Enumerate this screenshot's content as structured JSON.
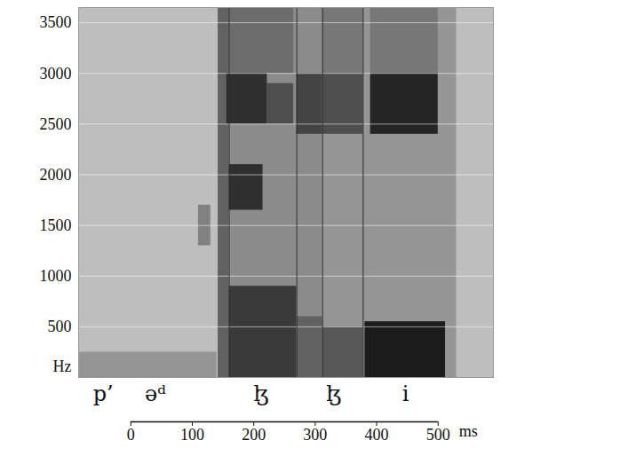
{
  "chart_data": {
    "type": "spectrogram",
    "x_label": "ms",
    "y_label": "Hz",
    "xlim": [
      -85,
      590
    ],
    "xticks": [
      0,
      100,
      200,
      300,
      400,
      500
    ],
    "ylim": [
      0,
      3650
    ],
    "yticks": [
      500,
      1000,
      1500,
      2000,
      2500,
      3000,
      3500
    ],
    "grid": true,
    "level_range": [
      0,
      1
    ],
    "cells": [
      {
        "t0": -85,
        "t1": 590,
        "f0": 0,
        "f1": 3650,
        "level": 0.15
      },
      {
        "t0": -85,
        "t1": 140,
        "f0": 0,
        "f1": 250,
        "level": 0.35
      },
      {
        "t0": 110,
        "t1": 130,
        "f0": 1300,
        "f1": 1700,
        "level": 0.45
      },
      {
        "t0": 142,
        "t1": 160,
        "f0": 0,
        "f1": 3650,
        "level": 0.6
      },
      {
        "t0": 160,
        "t1": 270,
        "f0": 0,
        "f1": 3650,
        "level": 0.4
      },
      {
        "t0": 160,
        "t1": 270,
        "f0": 0,
        "f1": 900,
        "level": 0.8
      },
      {
        "t0": 160,
        "t1": 215,
        "f0": 1650,
        "f1": 2100,
        "level": 0.85
      },
      {
        "t0": 156,
        "t1": 222,
        "f0": 2500,
        "f1": 3000,
        "level": 0.85
      },
      {
        "t0": 222,
        "t1": 265,
        "f0": 2500,
        "f1": 2900,
        "level": 0.7
      },
      {
        "t0": 160,
        "t1": 265,
        "f0": 3000,
        "f1": 3650,
        "level": 0.55
      },
      {
        "t0": 270,
        "t1": 312,
        "f0": 0,
        "f1": 3650,
        "level": 0.4
      },
      {
        "t0": 270,
        "t1": 312,
        "f0": 2400,
        "f1": 3000,
        "level": 0.75
      },
      {
        "t0": 270,
        "t1": 312,
        "f0": 0,
        "f1": 600,
        "level": 0.6
      },
      {
        "t0": 312,
        "t1": 378,
        "f0": 0,
        "f1": 3650,
        "level": 0.35
      },
      {
        "t0": 312,
        "t1": 378,
        "f0": 2400,
        "f1": 3000,
        "level": 0.7
      },
      {
        "t0": 312,
        "t1": 378,
        "f0": 3000,
        "f1": 3650,
        "level": 0.5
      },
      {
        "t0": 312,
        "t1": 378,
        "f0": 0,
        "f1": 500,
        "level": 0.65
      },
      {
        "t0": 378,
        "t1": 530,
        "f0": 0,
        "f1": 3650,
        "level": 0.35
      },
      {
        "t0": 381,
        "t1": 512,
        "f0": 0,
        "f1": 550,
        "level": 0.95
      },
      {
        "t0": 390,
        "t1": 500,
        "f0": 2400,
        "f1": 3000,
        "level": 0.9
      },
      {
        "t0": 390,
        "t1": 500,
        "f0": 3000,
        "f1": 3650,
        "level": 0.5
      }
    ],
    "boundaries": [
      160,
      270,
      312,
      378
    ],
    "segments": [
      {
        "label": "p’",
        "t": -45
      },
      {
        "label": "əᵈ",
        "t": 40
      },
      {
        "label": "ɮ",
        "t": 212
      },
      {
        "label": "ɮ",
        "t": 330
      },
      {
        "label": "i",
        "t": 447
      }
    ]
  }
}
